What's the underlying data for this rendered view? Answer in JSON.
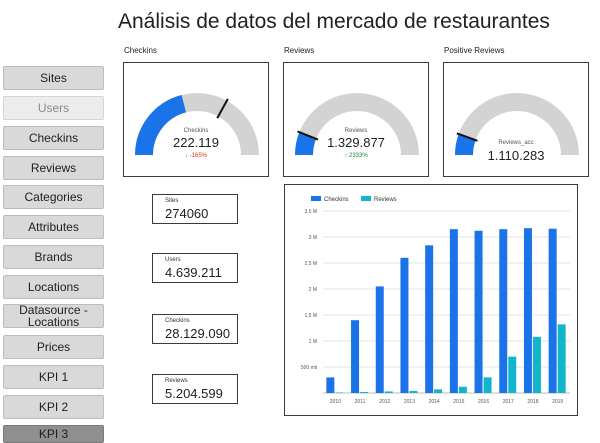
{
  "page": {
    "title": "Análisis de datos del mercado de restaurantes"
  },
  "sidebar": {
    "items": [
      {
        "label": "Sites",
        "state": "default"
      },
      {
        "label": "Users",
        "state": "active"
      },
      {
        "label": "Checkins",
        "state": "default"
      },
      {
        "label": "Reviews",
        "state": "default"
      },
      {
        "label": "Categories",
        "state": "default"
      },
      {
        "label": "Attributes",
        "state": "default"
      },
      {
        "label": "Brands",
        "state": "default"
      },
      {
        "label": "Locations",
        "state": "default"
      },
      {
        "label": "Datasource - Locations",
        "state": "default"
      },
      {
        "label": "Prices",
        "state": "default"
      },
      {
        "label": "KPI 1",
        "state": "default"
      },
      {
        "label": "KPI 2",
        "state": "default"
      },
      {
        "label": "KPI 3",
        "state": "partial"
      }
    ]
  },
  "gauges": [
    {
      "title": "Checkins",
      "label": "Checkins",
      "value": "222.119",
      "delta": "-165%",
      "delta_dir": "down",
      "fill_fraction": 0.42,
      "target_fraction": 0.66,
      "has_delta": true
    },
    {
      "title": "Reviews",
      "label": "Reviews",
      "value": "1.329.877",
      "delta": "2333%",
      "delta_dir": "up",
      "fill_fraction": 0.12,
      "target_fraction": 0.12,
      "has_delta": true
    },
    {
      "title": "Positive Reviews",
      "label": "Reviews_acc",
      "value": "1.110.283",
      "delta": "",
      "delta_dir": "none",
      "fill_fraction": 0.11,
      "target_fraction": 0.11,
      "has_delta": false
    }
  ],
  "scorecards": [
    {
      "label": "Sites",
      "value": "274060"
    },
    {
      "label": "Users",
      "value": "4.639.211"
    },
    {
      "label": "Checkins",
      "value": "28.129.090"
    },
    {
      "label": "Reviews",
      "value": "5.204.599"
    }
  ],
  "colors": {
    "accent_blue": "#1a73e8",
    "accent_teal": "#12b5cb",
    "gauge_track": "#d3d3d3",
    "delta_down": "#d93025",
    "delta_up": "#188038"
  },
  "chart_data": {
    "type": "bar",
    "categories": [
      "2010",
      "2011",
      "2012",
      "2013",
      "2014",
      "2015",
      "2016",
      "2017",
      "2018",
      "2019"
    ],
    "series": [
      {
        "name": "Checkins",
        "color": "#1a73e8",
        "values": [
          300000,
          1400000,
          2050000,
          2600000,
          2840000,
          3150000,
          3120000,
          3150000,
          3170000,
          3160000
        ]
      },
      {
        "name": "Reviews",
        "color": "#12b5cb",
        "values": [
          10000,
          20000,
          30000,
          40000,
          70000,
          120000,
          300000,
          700000,
          1080000,
          1320000
        ]
      }
    ],
    "yticks": [
      "500 mil",
      "1 M",
      "1,5 M",
      "2 M",
      "2,5 M",
      "3 M",
      "3,5 M"
    ],
    "ytick_values": [
      500000,
      1000000,
      1500000,
      2000000,
      2500000,
      3000000,
      3500000
    ],
    "ylim": [
      0,
      3500000
    ],
    "legend": "top-left",
    "grid": true
  }
}
